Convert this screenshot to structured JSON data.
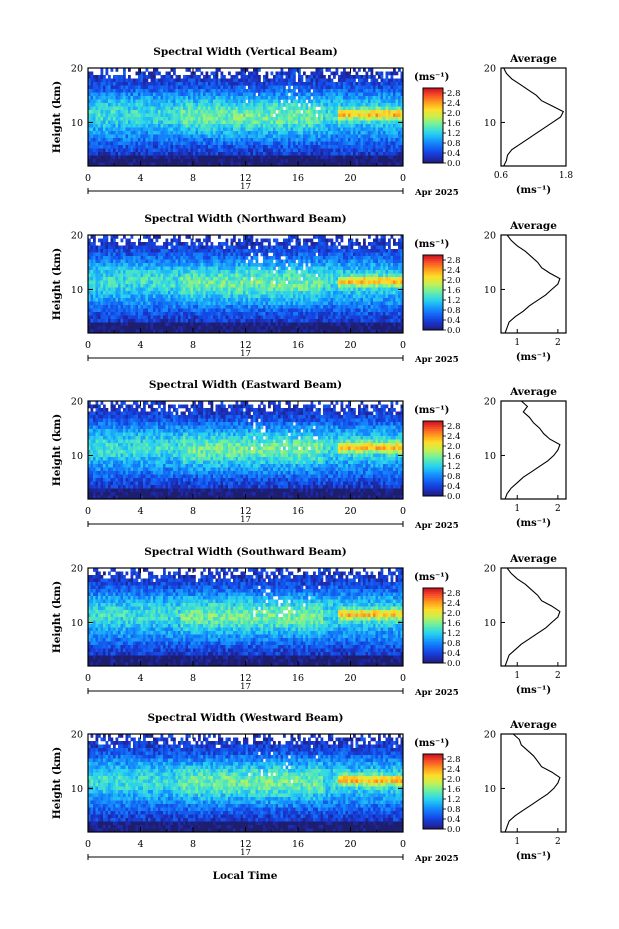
{
  "figure": {
    "xlabel": "Local Time",
    "date_label": "Apr 2025",
    "day_label": "17",
    "ylabel": "Height (km)",
    "colorbar_unit": "(ms⁻¹)",
    "profile_title": "Average",
    "profile_xlabel": "(ms⁻¹)"
  },
  "chart_data": [
    {
      "type": "heatmap",
      "title": "Spectral Width (Vertical Beam)",
      "xlabel": "Local Time",
      "ylabel": "Height (km)",
      "x_ticks": [
        "0",
        "4",
        "8",
        "12",
        "16",
        "20",
        "0"
      ],
      "y_ticks": [
        "20",
        "10"
      ],
      "xlim": [
        0,
        24
      ],
      "ylim": [
        2,
        20
      ],
      "colorbar_ticks": [
        "0.0",
        "0.4",
        "0.8",
        "1.2",
        "1.6",
        "2.0",
        "2.4",
        "2.8"
      ],
      "colorbar_range": [
        0,
        3.0
      ],
      "profile": {
        "x_ticks": [
          "0.6",
          "1.8"
        ],
        "xlim": [
          0.6,
          1.8
        ],
        "height": [
          2,
          3,
          4,
          5,
          6,
          7,
          8,
          9,
          10,
          11,
          12,
          13,
          14,
          15,
          16,
          17,
          18,
          19,
          20
        ],
        "values": [
          0.65,
          0.7,
          0.72,
          0.8,
          0.95,
          1.1,
          1.25,
          1.4,
          1.55,
          1.7,
          1.75,
          1.55,
          1.35,
          1.25,
          1.1,
          0.95,
          0.8,
          0.7,
          0.65
        ]
      }
    },
    {
      "type": "heatmap",
      "title": "Spectral Width (Northward Beam)",
      "xlabel": "Local Time",
      "ylabel": "Height (km)",
      "x_ticks": [
        "0",
        "4",
        "8",
        "12",
        "16",
        "20",
        "0"
      ],
      "y_ticks": [
        "20",
        "10"
      ],
      "xlim": [
        0,
        24
      ],
      "ylim": [
        2,
        20
      ],
      "colorbar_ticks": [
        "0.0",
        "0.4",
        "0.8",
        "1.2",
        "1.6",
        "2.0",
        "2.4",
        "2.8"
      ],
      "colorbar_range": [
        0,
        3.0
      ],
      "profile": {
        "x_ticks": [
          "1",
          "2"
        ],
        "xlim": [
          0.6,
          2.2
        ],
        "height": [
          2,
          3,
          4,
          5,
          6,
          7,
          8,
          9,
          10,
          11,
          12,
          13,
          14,
          15,
          16,
          17,
          18,
          19,
          20
        ],
        "values": [
          0.7,
          0.75,
          0.8,
          0.95,
          1.15,
          1.3,
          1.5,
          1.7,
          1.85,
          2.0,
          2.05,
          1.8,
          1.6,
          1.5,
          1.35,
          1.2,
          1.0,
          0.85,
          0.75
        ]
      }
    },
    {
      "type": "heatmap",
      "title": "Spectral Width (Eastward Beam)",
      "xlabel": "Local Time",
      "ylabel": "Height (km)",
      "x_ticks": [
        "0",
        "4",
        "8",
        "12",
        "16",
        "20",
        "0"
      ],
      "y_ticks": [
        "20",
        "10"
      ],
      "xlim": [
        0,
        24
      ],
      "ylim": [
        2,
        20
      ],
      "colorbar_ticks": [
        "0.0",
        "0.4",
        "0.8",
        "1.2",
        "1.6",
        "2.0",
        "2.4",
        "2.8"
      ],
      "colorbar_range": [
        0,
        3.0
      ],
      "profile": {
        "x_ticks": [
          "1",
          "2"
        ],
        "xlim": [
          0.6,
          2.2
        ],
        "height": [
          2,
          3,
          4,
          5,
          6,
          7,
          8,
          9,
          10,
          11,
          12,
          13,
          14,
          15,
          16,
          17,
          18,
          19,
          20
        ],
        "values": [
          0.7,
          0.75,
          0.85,
          1.0,
          1.15,
          1.35,
          1.55,
          1.75,
          1.9,
          2.0,
          2.05,
          1.8,
          1.65,
          1.55,
          1.4,
          1.3,
          1.15,
          1.25,
          1.1
        ]
      }
    },
    {
      "type": "heatmap",
      "title": "Spectral Width (Southward Beam)",
      "xlabel": "Local Time",
      "ylabel": "Height (km)",
      "x_ticks": [
        "0",
        "4",
        "8",
        "12",
        "16",
        "20",
        "0"
      ],
      "y_ticks": [
        "20",
        "10"
      ],
      "xlim": [
        0,
        24
      ],
      "ylim": [
        2,
        20
      ],
      "colorbar_ticks": [
        "0.0",
        "0.4",
        "0.8",
        "1.2",
        "1.6",
        "2.0",
        "2.4",
        "2.8"
      ],
      "colorbar_range": [
        0,
        3.0
      ],
      "profile": {
        "x_ticks": [
          "1",
          "2"
        ],
        "xlim": [
          0.6,
          2.2
        ],
        "height": [
          2,
          3,
          4,
          5,
          6,
          7,
          8,
          9,
          10,
          11,
          12,
          13,
          14,
          15,
          16,
          17,
          18,
          19,
          20
        ],
        "values": [
          0.7,
          0.75,
          0.8,
          0.95,
          1.1,
          1.3,
          1.5,
          1.7,
          1.85,
          2.0,
          2.05,
          1.85,
          1.6,
          1.5,
          1.35,
          1.2,
          1.0,
          0.85,
          0.75
        ]
      }
    },
    {
      "type": "heatmap",
      "title": "Spectral Width (Westward Beam)",
      "xlabel": "Local Time",
      "ylabel": "Height (km)",
      "x_ticks": [
        "0",
        "4",
        "8",
        "12",
        "16",
        "20",
        "0"
      ],
      "y_ticks": [
        "20",
        "10"
      ],
      "xlim": [
        0,
        24
      ],
      "ylim": [
        2,
        20
      ],
      "colorbar_ticks": [
        "0.0",
        "0.4",
        "0.8",
        "1.2",
        "1.6",
        "2.0",
        "2.4",
        "2.8"
      ],
      "colorbar_range": [
        0,
        3.0
      ],
      "profile": {
        "x_ticks": [
          "1",
          "2"
        ],
        "xlim": [
          0.6,
          2.2
        ],
        "height": [
          2,
          3,
          4,
          5,
          6,
          7,
          8,
          9,
          10,
          11,
          12,
          13,
          14,
          15,
          16,
          17,
          18,
          19,
          20
        ],
        "values": [
          0.7,
          0.75,
          0.8,
          0.95,
          1.15,
          1.35,
          1.55,
          1.75,
          1.9,
          2.0,
          2.05,
          1.85,
          1.6,
          1.5,
          1.4,
          1.25,
          1.1,
          1.05,
          0.9
        ]
      }
    }
  ]
}
